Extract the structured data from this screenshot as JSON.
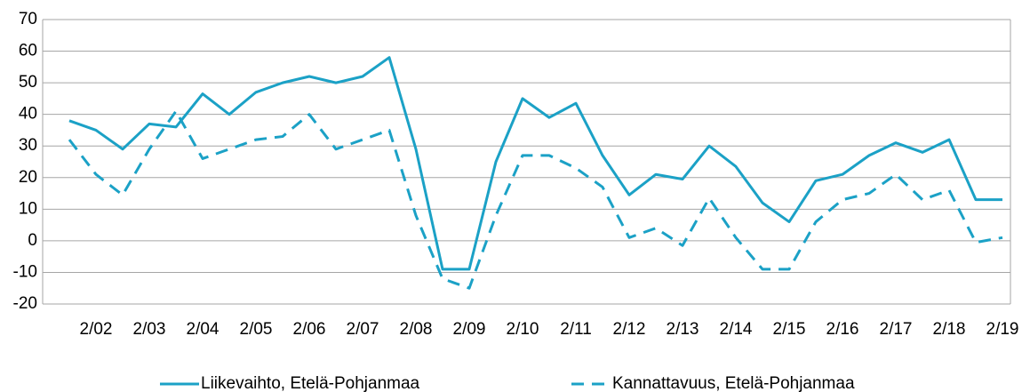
{
  "chart_data": {
    "type": "line",
    "categories": [
      null,
      "2/02",
      null,
      "2/03",
      null,
      "2/04",
      null,
      "2/05",
      null,
      "2/06",
      null,
      "2/07",
      null,
      "2/08",
      null,
      "2/09",
      null,
      "2/10",
      null,
      "2/11",
      null,
      "2/12",
      null,
      "2/13",
      null,
      "2/14",
      null,
      "2/15",
      null,
      "2/16",
      null,
      "2/17",
      null,
      "2/18",
      null,
      "2/19"
    ],
    "series": [
      {
        "name": "Liikevaihto, Etelä-Pohjanmaa",
        "color": "#1ba1c6",
        "dash": false,
        "values": [
          38,
          35,
          29,
          37,
          36,
          46.5,
          40,
          47,
          50,
          52,
          50,
          52,
          58,
          29,
          -9,
          -9,
          25,
          45,
          39,
          43.5,
          27,
          14.5,
          21,
          19.5,
          30,
          23.5,
          12,
          6,
          19,
          21,
          27,
          31,
          28,
          32,
          13,
          13
        ]
      },
      {
        "name": "Kannattavuus, Etelä-Pohjanmaa",
        "color": "#1ba1c6",
        "dash": true,
        "values": [
          32,
          21,
          14.5,
          29,
          41,
          26,
          29,
          32,
          33,
          40,
          29,
          32,
          35,
          8,
          -12,
          -15,
          8,
          27,
          27,
          23,
          17,
          1,
          4,
          -1.5,
          13.5,
          1,
          -9,
          -9,
          6,
          13,
          15,
          21,
          13,
          16,
          -0.5,
          1
        ]
      }
    ],
    "ylim": [
      -20,
      70
    ],
    "yticks": [
      -20,
      -10,
      0,
      10,
      20,
      30,
      40,
      50,
      60,
      70
    ],
    "grid": true,
    "legend": "bottom"
  }
}
